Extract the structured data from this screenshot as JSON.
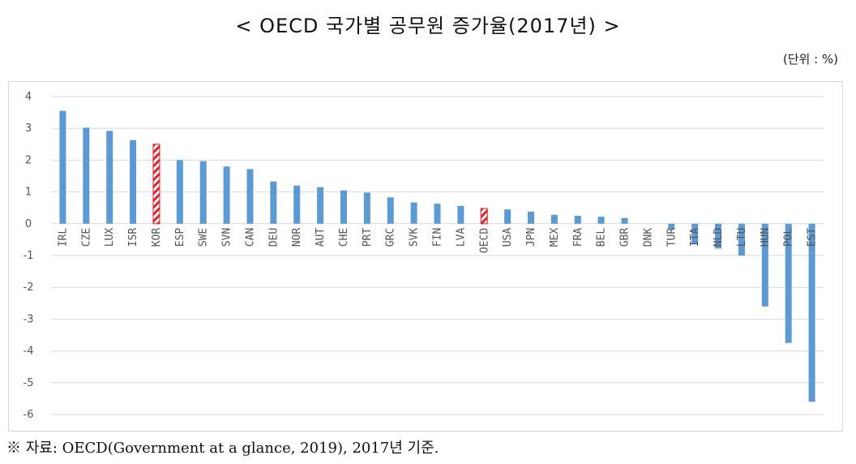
{
  "title": "< OECD 국가별 공무원 증가율(2017년) >",
  "unit_note": "(단위 : %)",
  "source_note": "※ 자료: OECD(Government at a glance, 2019), 2017년 기준.",
  "colors": {
    "bar": "#5b9bd5",
    "highlight": "#e8202a",
    "grid": "#d9d9d9",
    "tick_text": "#555555"
  },
  "chart_data": {
    "type": "bar",
    "title": "< OECD 국가별 공무원 증가율(2017년) >",
    "xlabel": "",
    "ylabel": "",
    "ylim": [
      -6,
      4
    ],
    "yticks": [
      4,
      3,
      2,
      1,
      0,
      -1,
      -2,
      -3,
      -4,
      -5,
      -6
    ],
    "grid": true,
    "highlight_categories": [
      "KOR",
      "OECD"
    ],
    "categories": [
      "IRL",
      "CZE",
      "LUX",
      "ISR",
      "KOR",
      "ESP",
      "SWE",
      "SVN",
      "CAN",
      "DEU",
      "NOR",
      "AUT",
      "CHE",
      "PRT",
      "GRC",
      "SVK",
      "FIN",
      "LVA",
      "OECD",
      "USA",
      "JPN",
      "MEX",
      "FRA",
      "BEL",
      "GBR",
      "DNK",
      "TUR",
      "ITA",
      "NLD",
      "LTU",
      "HUN",
      "POL",
      "EST"
    ],
    "values": [
      3.55,
      3.02,
      2.92,
      2.63,
      2.5,
      2.0,
      1.97,
      1.8,
      1.72,
      1.33,
      1.2,
      1.15,
      1.05,
      0.98,
      0.83,
      0.67,
      0.63,
      0.56,
      0.48,
      0.45,
      0.38,
      0.28,
      0.25,
      0.22,
      0.18,
      0.0,
      -0.18,
      -0.65,
      -0.78,
      -1.0,
      -2.6,
      -3.75,
      -5.6
    ]
  }
}
